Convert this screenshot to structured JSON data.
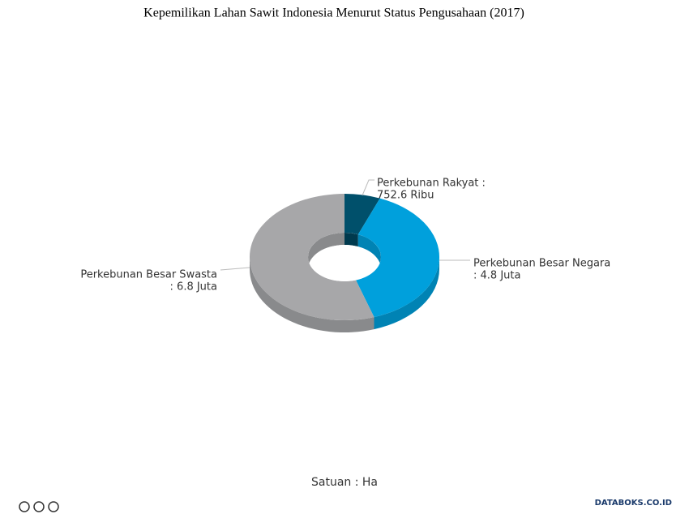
{
  "chart_data": {
    "type": "donut3d",
    "title": "Kepemilikan Lahan Sawit Indonesia Menurut Status Pengusahaan (2017)",
    "categories": [
      "Perkebunan Rakyat :",
      "Perkebunan Besar Negara",
      "Perkebunan Besar Swasta"
    ],
    "values": [
      752600,
      4800000,
      6800000
    ],
    "value_labels": [
      "752.6 Ribu",
      ": 4.8 Juta",
      ": 6.8 Juta"
    ],
    "colors": [
      "#00506b",
      "#00a0dc",
      "#a7a7a9"
    ],
    "side_colors": [
      "#003a4e",
      "#0083b4",
      "#898a8c"
    ],
    "note": "Satuan : Ha",
    "source_logo": "DATABOKS.CO.ID"
  }
}
